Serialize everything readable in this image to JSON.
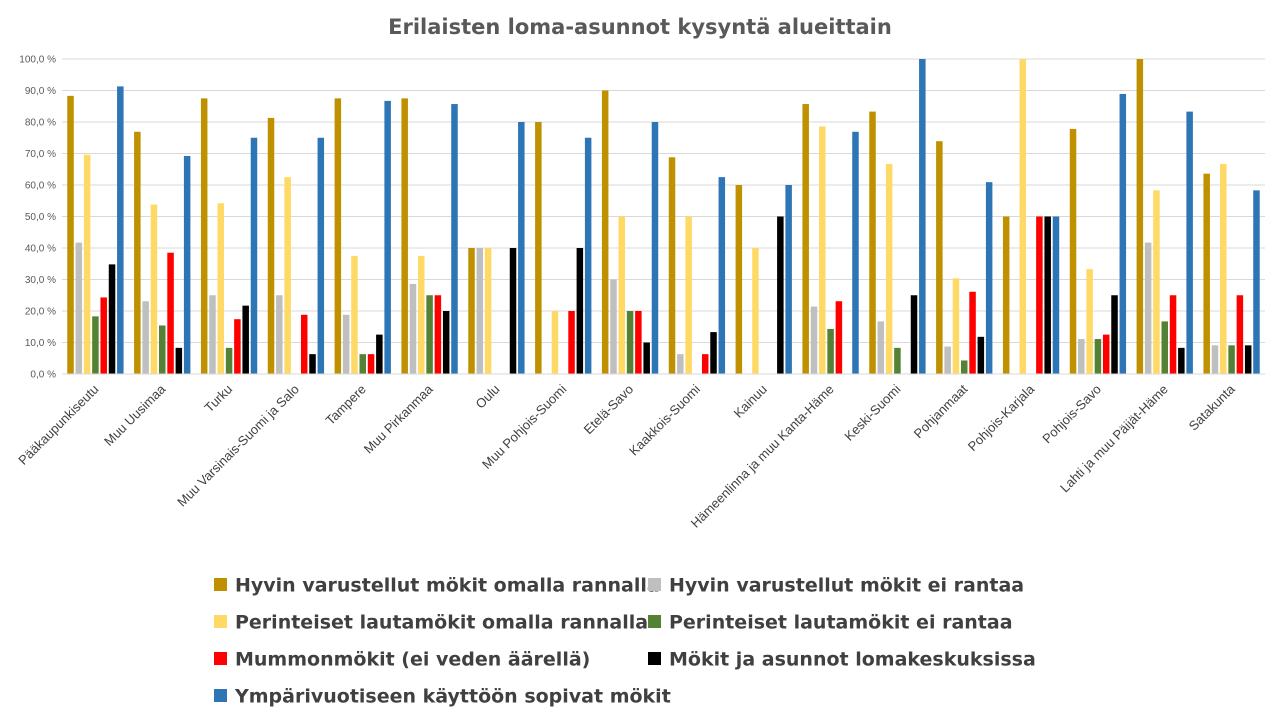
{
  "chart_data": {
    "type": "bar",
    "title": "Erilaisten loma-asunnot kysyntä alueittain",
    "xlabel": "",
    "ylabel": "",
    "ylim": [
      0,
      100
    ],
    "yticks": [
      "0,0 %",
      "10,0 %",
      "20,0 %",
      "30,0 %",
      "40,0 %",
      "50,0 %",
      "60,0 %",
      "70,0 %",
      "80,0 %",
      "90,0 %",
      "100,0 %"
    ],
    "grid": true,
    "legend_position": "bottom",
    "categories": [
      "Pääkaupunkiseutu",
      "Muu Uusimaa",
      "Turku",
      "Muu Varsinais-Suomi ja Salo",
      "Tampere",
      "Muu Pirkanmaa",
      "Oulu",
      "Muu Pohjois-Suomi",
      "Etelä-Savo",
      "Kaakkois-Suomi",
      "Kainuu",
      "Hämeenlinna ja muu Kanta-Häme",
      "Keski-Suomi",
      "Pohjanmaat",
      "Pohjois-Karjala",
      "Pohjois-Savo",
      "Lahti ja muu Päijät-Häme",
      "Satakunta"
    ],
    "series": [
      {
        "name": "Hyvin varustellut mökit omalla rannalla",
        "color": "#BF9000",
        "values": [
          88.3,
          76.9,
          87.5,
          81.3,
          87.5,
          87.5,
          40.0,
          80.0,
          90.0,
          68.8,
          60.0,
          85.7,
          83.3,
          73.9,
          50.0,
          77.8,
          100.0,
          63.6
        ]
      },
      {
        "name": "Hyvin varustellut mökit ei rantaa",
        "color": "#BFBFBF",
        "values": [
          41.7,
          23.1,
          25.0,
          25.0,
          18.8,
          28.6,
          40.0,
          0,
          30.0,
          6.3,
          0,
          21.4,
          16.7,
          8.7,
          0,
          11.1,
          41.7,
          9.1
        ]
      },
      {
        "name": "Perinteiset lautamökit omalla rannalla",
        "color": "#FFD966",
        "values": [
          69.6,
          53.8,
          54.2,
          62.5,
          37.5,
          37.5,
          40.0,
          20.0,
          50.0,
          50.0,
          40.0,
          78.6,
          66.7,
          30.4,
          100.0,
          33.3,
          58.3,
          66.7
        ]
      },
      {
        "name": "Perinteiset lautamökit ei rantaa",
        "color": "#548235",
        "values": [
          18.3,
          15.4,
          8.3,
          0,
          6.3,
          25.0,
          0,
          0,
          20.0,
          0,
          0,
          14.3,
          8.3,
          4.3,
          0,
          11.1,
          16.7,
          9.1
        ]
      },
      {
        "name": "Mummonmökit (ei veden äärellä)",
        "color": "#FF0000",
        "values": [
          24.3,
          38.5,
          17.4,
          18.8,
          6.3,
          25.0,
          0,
          20.0,
          20.0,
          6.3,
          0,
          23.1,
          0,
          26.1,
          50.0,
          12.5,
          25.0,
          25.0
        ]
      },
      {
        "name": "Mökit ja asunnot lomakeskuksissa",
        "color": "#000000",
        "values": [
          34.8,
          8.3,
          21.7,
          6.3,
          12.5,
          20.0,
          40.0,
          40.0,
          10.0,
          13.3,
          50.0,
          0,
          25.0,
          11.8,
          50.0,
          25.0,
          8.3,
          9.1
        ]
      },
      {
        "name": "Ympärivuotiseen käyttöön sopivat mökit",
        "color": "#2E75B6",
        "values": [
          91.3,
          69.2,
          75.0,
          75.0,
          86.7,
          85.7,
          80.0,
          75.0,
          80.0,
          62.5,
          60.0,
          76.9,
          100.0,
          60.9,
          50.0,
          88.9,
          83.3,
          58.3
        ]
      }
    ]
  }
}
